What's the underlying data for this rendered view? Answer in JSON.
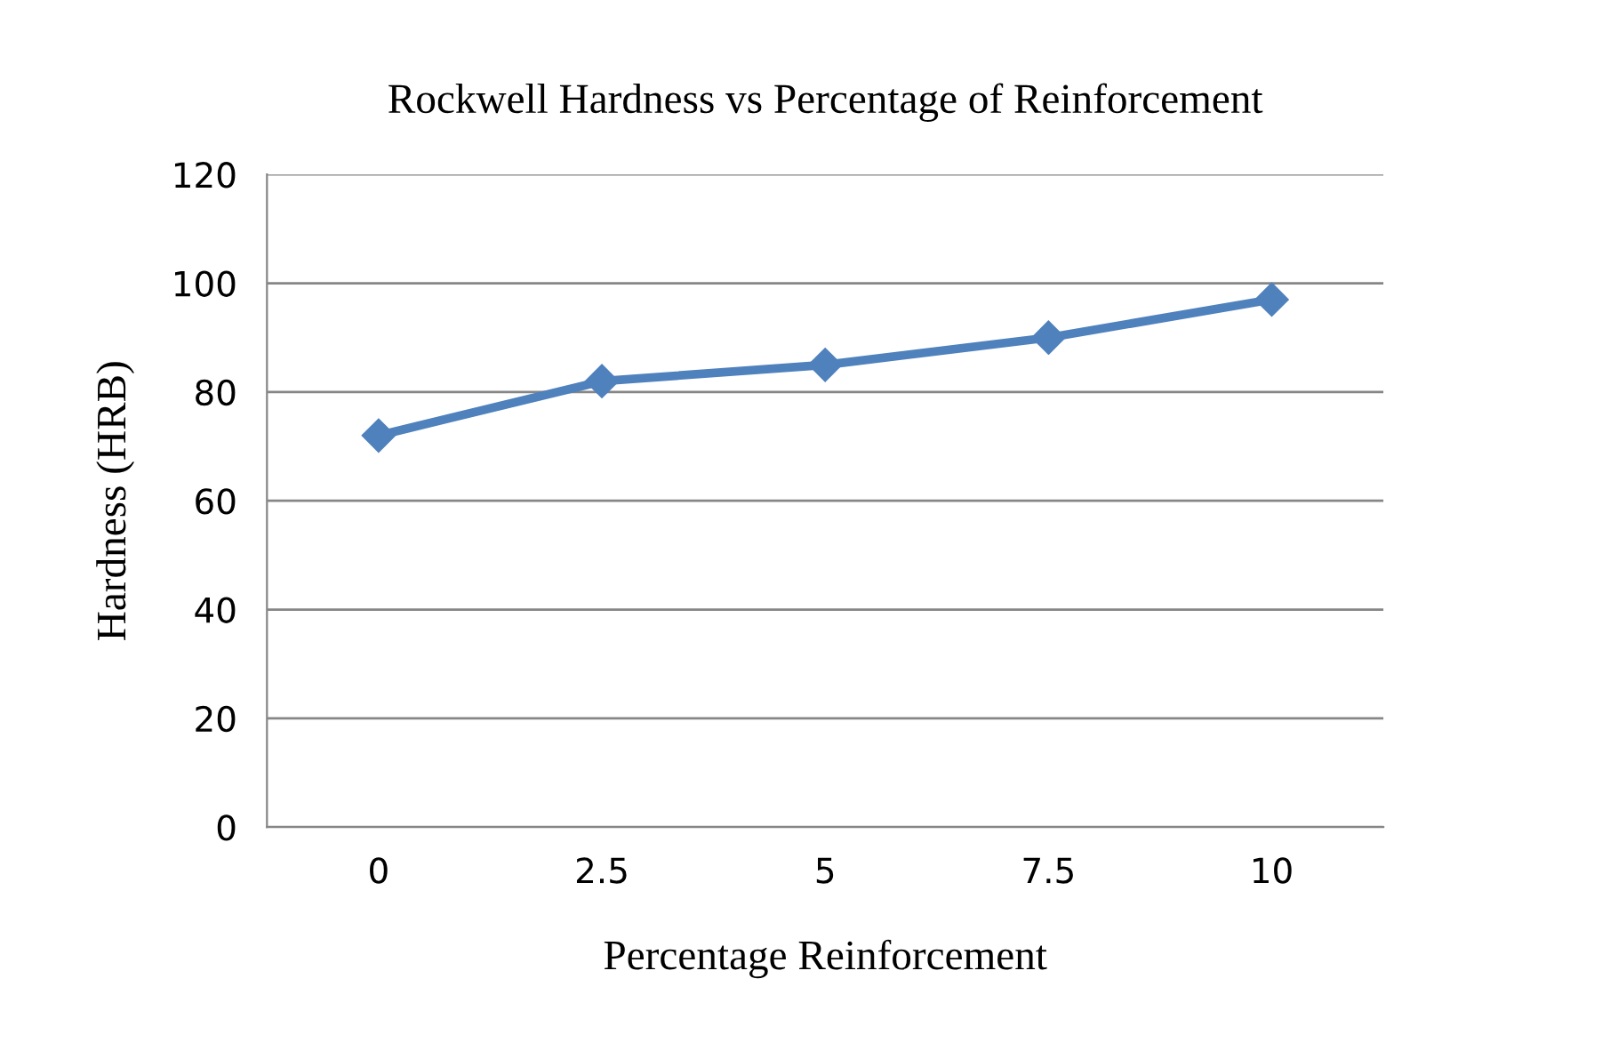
{
  "chart_data": {
    "type": "line",
    "title": "Rockwell Hardness vs Percentage of Reinforcement",
    "xlabel": "Percentage Reinforcement",
    "ylabel": "Hardness (HRB)",
    "categories": [
      "0",
      "2.5",
      "5",
      "7.5",
      "10"
    ],
    "series": [
      {
        "color": "#4f81bd",
        "values": [
          72,
          82,
          85,
          90,
          97
        ]
      }
    ],
    "ylim": [
      0,
      120
    ],
    "yticks": [
      0,
      20,
      40,
      60,
      80,
      100,
      120
    ],
    "grid": "y",
    "marker": "diamond",
    "line_style": "solid",
    "legend": false
  }
}
